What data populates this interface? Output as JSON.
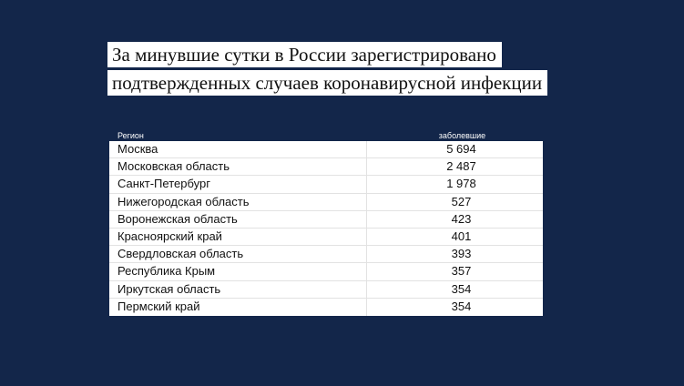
{
  "title": {
    "line1": "За минувшие сутки в России зарегистрировано",
    "line2": "подтвержденных случаев коронавирусной инфекции"
  },
  "chart_data": {
    "type": "table",
    "columns": [
      "Регион",
      "заболевшие"
    ],
    "rows": [
      {
        "region": "Москва",
        "value": "5 694"
      },
      {
        "region": "Московская область",
        "value": "2 487"
      },
      {
        "region": "Санкт-Петербург",
        "value": "1 978"
      },
      {
        "region": "Нижегородская область",
        "value": "527"
      },
      {
        "region": "Воронежская область",
        "value": "423"
      },
      {
        "region": "Красноярский край",
        "value": "401"
      },
      {
        "region": "Свердловская область",
        "value": "393"
      },
      {
        "region": "Республика Крым",
        "value": "357"
      },
      {
        "region": "Иркутская область",
        "value": "354"
      },
      {
        "region": "Пермский край",
        "value": "354"
      }
    ]
  }
}
